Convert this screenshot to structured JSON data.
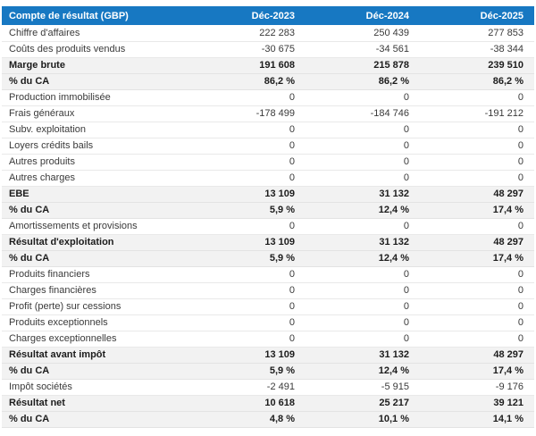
{
  "chart_data": {
    "type": "table",
    "title": "Compte de résultat (GBP)",
    "columns": [
      "Déc-2023",
      "Déc-2024",
      "Déc-2025"
    ],
    "rows": [
      {
        "label": "Chiffre d'affaires",
        "values": [
          "222 283",
          "250 439",
          "277 853"
        ],
        "style": "normal"
      },
      {
        "label": "Coûts des produits vendus",
        "values": [
          "-30 675",
          "-34 561",
          "-38 344"
        ],
        "style": "normal"
      },
      {
        "label": "Marge brute",
        "values": [
          "191 608",
          "215 878",
          "239 510"
        ],
        "style": "summary"
      },
      {
        "label": "% du CA",
        "values": [
          "86,2 %",
          "86,2 %",
          "86,2 %"
        ],
        "style": "summary"
      },
      {
        "label": "Production immobilisée",
        "values": [
          "0",
          "0",
          "0"
        ],
        "style": "normal"
      },
      {
        "label": "Frais généraux",
        "values": [
          "-178 499",
          "-184 746",
          "-191 212"
        ],
        "style": "normal"
      },
      {
        "label": "Subv. exploitation",
        "values": [
          "0",
          "0",
          "0"
        ],
        "style": "normal"
      },
      {
        "label": "Loyers crédits bails",
        "values": [
          "0",
          "0",
          "0"
        ],
        "style": "normal"
      },
      {
        "label": "Autres produits",
        "values": [
          "0",
          "0",
          "0"
        ],
        "style": "normal"
      },
      {
        "label": "Autres charges",
        "values": [
          "0",
          "0",
          "0"
        ],
        "style": "normal"
      },
      {
        "label": "EBE",
        "values": [
          "13 109",
          "31 132",
          "48 297"
        ],
        "style": "summary"
      },
      {
        "label": "% du CA",
        "values": [
          "5,9 %",
          "12,4 %",
          "17,4 %"
        ],
        "style": "summary"
      },
      {
        "label": "Amortissements et provisions",
        "values": [
          "0",
          "0",
          "0"
        ],
        "style": "normal"
      },
      {
        "label": "Résultat d'exploitation",
        "values": [
          "13 109",
          "31 132",
          "48 297"
        ],
        "style": "summary"
      },
      {
        "label": "% du CA",
        "values": [
          "5,9 %",
          "12,4 %",
          "17,4 %"
        ],
        "style": "summary"
      },
      {
        "label": "Produits financiers",
        "values": [
          "0",
          "0",
          "0"
        ],
        "style": "normal"
      },
      {
        "label": "Charges financières",
        "values": [
          "0",
          "0",
          "0"
        ],
        "style": "normal"
      },
      {
        "label": "Profit (perte) sur cessions",
        "values": [
          "0",
          "0",
          "0"
        ],
        "style": "normal"
      },
      {
        "label": "Produits exceptionnels",
        "values": [
          "0",
          "0",
          "0"
        ],
        "style": "normal"
      },
      {
        "label": "Charges exceptionnelles",
        "values": [
          "0",
          "0",
          "0"
        ],
        "style": "normal"
      },
      {
        "label": "Résultat avant impôt",
        "values": [
          "13 109",
          "31 132",
          "48 297"
        ],
        "style": "summary"
      },
      {
        "label": "% du CA",
        "values": [
          "5,9 %",
          "12,4 %",
          "17,4 %"
        ],
        "style": "summary"
      },
      {
        "label": "Impôt sociétés",
        "values": [
          "-2 491",
          "-5 915",
          "-9 176"
        ],
        "style": "normal"
      },
      {
        "label": "Résultat net",
        "values": [
          "10 618",
          "25 217",
          "39 121"
        ],
        "style": "summary"
      },
      {
        "label": "% du CA",
        "values": [
          "4,8 %",
          "10,1 %",
          "14,1 %"
        ],
        "style": "summary"
      }
    ]
  },
  "colors": {
    "header_bg": "#1778c2",
    "header_text": "#ffffff",
    "summary_row_bg": "#f2f2f2",
    "row_border": "#e9e9e9",
    "normal_text": "#3a3a3a",
    "bold_text": "#1c1c1c",
    "page_bg": "#ffffff"
  }
}
